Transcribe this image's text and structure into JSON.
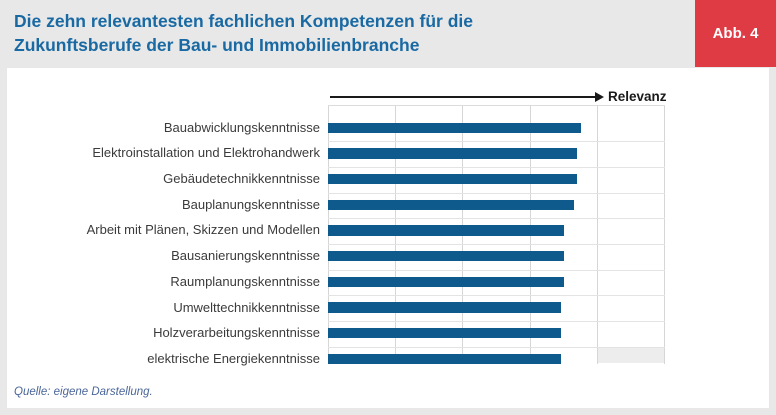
{
  "header": {
    "title": "Die zehn relevantesten fachlichen Kompetenzen für die Zukunftsberufe der Bau- und Immobilienbranche",
    "badge": "Abb. 4"
  },
  "footer": {
    "source": "Quelle: eigene Darstellung."
  },
  "colors": {
    "background": "#E8E8E8",
    "panel": "#FFFFFF",
    "bar": "#0F5A8C",
    "title": "#1969A3",
    "badge_bg": "#DF3B44",
    "grid": "#D6D6D6",
    "label": "#3B3B3B",
    "axis_arrow": "#1A1A1A",
    "source_text": "#4A6699"
  },
  "chart_data": {
    "type": "bar",
    "orientation": "horizontal",
    "title": "Die zehn relevantesten fachlichen Kompetenzen für die Zukunftsberufe der Bau- und Immobilienbranche",
    "xlabel": "Relevanz",
    "ylabel": "",
    "categories": [
      "Bauabwicklungskenntnisse",
      "Elektroinstallation und Elektrohandwerk",
      "Gebäudetechnikkenntnisse",
      "Bauplanungskenntnisse",
      "Arbeit mit Plänen, Skizzen und Modellen",
      "Bausanierungskenntnisse",
      "Raumplanungskenntnisse",
      "Umwelttechnikkenntnisse",
      "Holzverarbeitungskenntnisse",
      "elektrische Energiekenntnisse"
    ],
    "values": [
      0.75,
      0.74,
      0.74,
      0.73,
      0.7,
      0.7,
      0.7,
      0.69,
      0.69,
      0.69
    ],
    "value_scale": "relative 0-1 of axis span; axis shows no numeric tick labels",
    "axis": {
      "min": 0,
      "max": 1,
      "gridline_count": 6,
      "tick_labels_shown": false
    },
    "grid": "vertical gridlines plus faint horizontal row separators",
    "legend": "none"
  }
}
